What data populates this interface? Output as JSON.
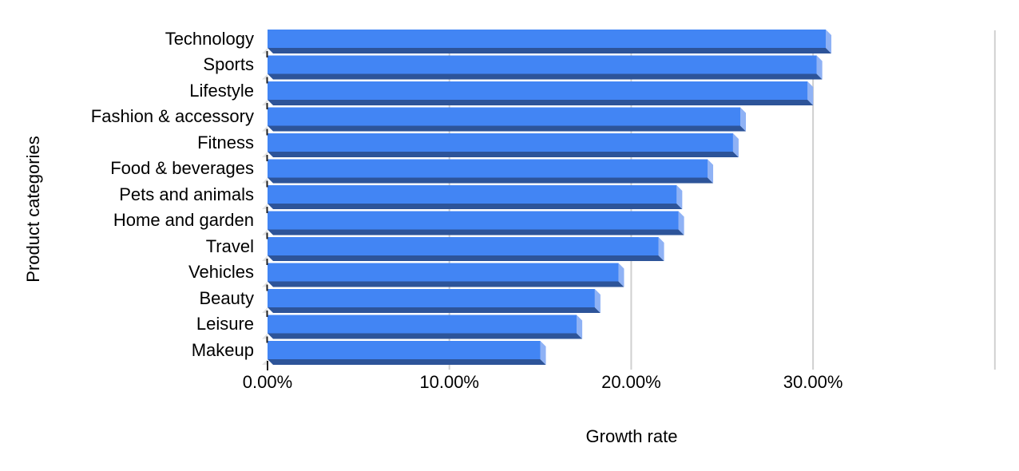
{
  "chart_data": {
    "type": "bar",
    "orientation": "horizontal",
    "title": "",
    "xlabel": "Growth rate",
    "ylabel": "Product categories",
    "categories": [
      "Technology",
      "Sports",
      "Lifestyle",
      "Fashion & accessory",
      "Fitness",
      "Food & beverages",
      "Pets and animals",
      "Home and garden",
      "Travel",
      "Vehicles",
      "Beauty",
      "Leisure",
      "Makeup"
    ],
    "values": [
      30.7,
      30.2,
      29.7,
      26.0,
      25.6,
      24.2,
      22.5,
      22.6,
      21.5,
      19.3,
      18.0,
      17.0,
      15.0
    ],
    "unit": "%",
    "xlim": [
      0,
      40
    ],
    "x_ticks": [
      0,
      10,
      20,
      30
    ],
    "x_tick_labels": [
      "0.00%",
      "10.00%",
      "20.00%",
      "30.00%"
    ],
    "grid": "vertical",
    "legend": "none",
    "colors": {
      "bar_face": "#4285f4",
      "bar_bottom": "#2d5499",
      "bar_cap": "#8fb2f5",
      "axis_wedge": "#e3e3e3",
      "gridline": "#d0d0d0",
      "tick": "#212121",
      "text": "#000000"
    }
  }
}
